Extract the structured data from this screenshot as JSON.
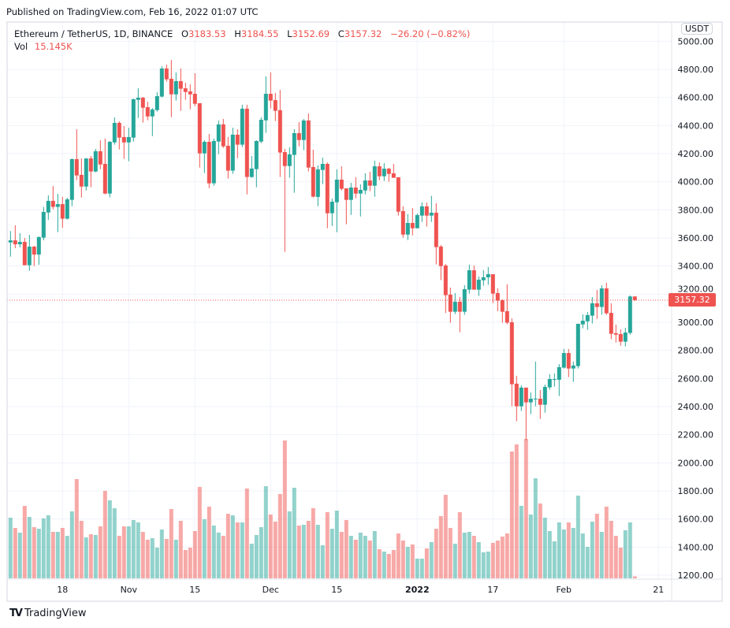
{
  "published": "Published on TradingView.com, Feb 16, 2022 01:07 UTC",
  "legend": {
    "symbol": "Ethereum / TetherUS, 1D, BINANCE",
    "o_label": "O",
    "o": "3183.53",
    "h_label": "H",
    "h": "3184.55",
    "l_label": "L",
    "l": "3152.69",
    "c_label": "C",
    "c": "3157.32",
    "change": "−26.20 (−0.82%)",
    "vol_label": "Vol",
    "vol": "15.145K"
  },
  "currency_button": "USDT",
  "last_price_label": "3157.32",
  "logo_text": "TradingView",
  "colors": {
    "up": "#26a69a",
    "down": "#ef5350",
    "grid": "#f0f3fa",
    "border": "#e0e3eb"
  },
  "chart_data": {
    "type": "candlestick",
    "title": "",
    "xlabel": "",
    "ylabel": "",
    "ylim": [
      1200,
      5000
    ],
    "grid": true,
    "y_tick_labels": [
      "5000.00",
      "4800.00",
      "4600.00",
      "4400.00",
      "4200.00",
      "4000.00",
      "3800.00",
      "3600.00",
      "3400.00",
      "3200.00",
      "3000.00",
      "2800.00",
      "2600.00",
      "2400.00",
      "2200.00",
      "2000.00",
      "1800.00",
      "1600.00",
      "1400.00",
      "1200.00"
    ],
    "x_ticks": [
      {
        "date": "2021-10-18",
        "label": "18"
      },
      {
        "date": "2021-11-01",
        "label": "Nov"
      },
      {
        "date": "2021-11-15",
        "label": "15"
      },
      {
        "date": "2021-12-01",
        "label": "Dec"
      },
      {
        "date": "2021-12-15",
        "label": "15"
      },
      {
        "date": "2022-01-01",
        "label": "2022"
      },
      {
        "date": "2022-01-17",
        "label": "17"
      },
      {
        "date": "2022-02-01",
        "label": "Feb"
      },
      {
        "date": "2022-02-21",
        "label": "21"
      }
    ],
    "last_price": 3157.32,
    "columns": [
      "date",
      "open",
      "high",
      "low",
      "close",
      "volume_k"
    ],
    "candles": [
      [
        "2021-10-07",
        3568,
        3649,
        3467,
        3583,
        462
      ],
      [
        "2021-10-08",
        3583,
        3690,
        3527,
        3555,
        384
      ],
      [
        "2021-10-09",
        3555,
        3634,
        3533,
        3572,
        348
      ],
      [
        "2021-10-10",
        3572,
        3600,
        3406,
        3406,
        552
      ],
      [
        "2021-10-11",
        3406,
        3622,
        3366,
        3538,
        468
      ],
      [
        "2021-10-12",
        3538,
        3544,
        3400,
        3482,
        390
      ],
      [
        "2021-10-13",
        3482,
        3611,
        3409,
        3606,
        378
      ],
      [
        "2021-10-14",
        3602,
        3821,
        3583,
        3785,
        456
      ],
      [
        "2021-10-15",
        3781,
        3903,
        3729,
        3864,
        480
      ],
      [
        "2021-10-16",
        3864,
        3970,
        3804,
        3821,
        354
      ],
      [
        "2021-10-17",
        3821,
        3914,
        3641,
        3841,
        354
      ],
      [
        "2021-10-18",
        3841,
        3892,
        3673,
        3737,
        384
      ],
      [
        "2021-10-19",
        3737,
        3886,
        3731,
        3875,
        324
      ],
      [
        "2021-10-20",
        3871,
        4166,
        3826,
        4161,
        510
      ],
      [
        "2021-10-21",
        4161,
        4374,
        4011,
        4045,
        756
      ],
      [
        "2021-10-22",
        4049,
        4166,
        3888,
        3966,
        438
      ],
      [
        "2021-10-23",
        3966,
        4166,
        3938,
        4166,
        312
      ],
      [
        "2021-10-24",
        4166,
        4183,
        3961,
        4073,
        336
      ],
      [
        "2021-10-25",
        4073,
        4234,
        4067,
        4217,
        330
      ],
      [
        "2021-10-26",
        4217,
        4295,
        4090,
        4123,
        396
      ],
      [
        "2021-10-27",
        4127,
        4307,
        3910,
        3916,
        666
      ],
      [
        "2021-10-28",
        3916,
        4290,
        3888,
        4284,
        594
      ],
      [
        "2021-10-29",
        4280,
        4458,
        4264,
        4419,
        534
      ],
      [
        "2021-10-30",
        4419,
        4430,
        4230,
        4314,
        324
      ],
      [
        "2021-10-31",
        4318,
        4396,
        4163,
        4280,
        396
      ],
      [
        "2021-11-01",
        4280,
        4385,
        4146,
        4318,
        396
      ],
      [
        "2021-11-02",
        4314,
        4592,
        4286,
        4587,
        444
      ],
      [
        "2021-11-03",
        4583,
        4665,
        4454,
        4598,
        426
      ],
      [
        "2021-11-04",
        4598,
        4604,
        4421,
        4527,
        354
      ],
      [
        "2021-11-05",
        4531,
        4570,
        4437,
        4465,
        294
      ],
      [
        "2021-11-06",
        4465,
        4525,
        4325,
        4514,
        306
      ],
      [
        "2021-11-07",
        4510,
        4637,
        4499,
        4609,
        234
      ],
      [
        "2021-11-08",
        4606,
        4822,
        4600,
        4806,
        372
      ],
      [
        "2021-11-09",
        4806,
        4834,
        4712,
        4729,
        300
      ],
      [
        "2021-11-10",
        4733,
        4867,
        4460,
        4622,
        528
      ],
      [
        "2021-11-11",
        4622,
        4778,
        4578,
        4716,
        294
      ],
      [
        "2021-11-12",
        4716,
        4806,
        4505,
        4662,
        438
      ],
      [
        "2021-11-13",
        4665,
        4705,
        4583,
        4639,
        216
      ],
      [
        "2021-11-14",
        4643,
        4693,
        4516,
        4622,
        234
      ],
      [
        "2021-11-15",
        4626,
        4772,
        4538,
        4555,
        360
      ],
      [
        "2021-11-16",
        4559,
        4559,
        4101,
        4202,
        696
      ],
      [
        "2021-11-17",
        4202,
        4295,
        4062,
        4284,
        450
      ],
      [
        "2021-11-18",
        4284,
        4340,
        3955,
        3989,
        546
      ],
      [
        "2021-11-19",
        3989,
        4307,
        3972,
        4290,
        402
      ],
      [
        "2021-11-20",
        4286,
        4436,
        4196,
        4408,
        348
      ],
      [
        "2021-11-21",
        4408,
        4447,
        4241,
        4252,
        324
      ],
      [
        "2021-11-22",
        4256,
        4318,
        4023,
        4079,
        492
      ],
      [
        "2021-11-23",
        4079,
        4385,
        4056,
        4335,
        480
      ],
      [
        "2021-11-24",
        4335,
        4374,
        4168,
        4264,
        426
      ],
      [
        "2021-11-25",
        4264,
        4548,
        4247,
        4520,
        426
      ],
      [
        "2021-11-26",
        4520,
        4548,
        3910,
        4034,
        684
      ],
      [
        "2021-11-27",
        4034,
        4183,
        4028,
        4094,
        264
      ],
      [
        "2021-11-28",
        4090,
        4295,
        3961,
        4290,
        330
      ],
      [
        "2021-11-29",
        4286,
        4458,
        4275,
        4441,
        390
      ],
      [
        "2021-11-30",
        4437,
        4750,
        4348,
        4626,
        702
      ],
      [
        "2021-12-01",
        4626,
        4778,
        4522,
        4578,
        486
      ],
      [
        "2021-12-02",
        4581,
        4632,
        4432,
        4505,
        432
      ],
      [
        "2021-12-03",
        4509,
        4654,
        4034,
        4208,
        642
      ],
      [
        "2021-12-04",
        4211,
        4234,
        3501,
        4112,
        1050
      ],
      [
        "2021-12-05",
        4112,
        4245,
        4028,
        4195,
        510
      ],
      [
        "2021-12-06",
        4191,
        4374,
        3922,
        4346,
        690
      ],
      [
        "2021-12-07",
        4346,
        4424,
        4252,
        4297,
        402
      ],
      [
        "2021-12-08",
        4297,
        4447,
        4225,
        4436,
        408
      ],
      [
        "2021-12-09",
        4436,
        4486,
        4073,
        4101,
        438
      ],
      [
        "2021-12-10",
        4105,
        4228,
        3888,
        3894,
        534
      ],
      [
        "2021-12-11",
        3892,
        4116,
        3826,
        4088,
        408
      ],
      [
        "2021-12-12",
        4084,
        4172,
        3983,
        4127,
        252
      ],
      [
        "2021-12-13",
        4127,
        4138,
        3669,
        3776,
        504
      ],
      [
        "2021-12-14",
        3776,
        3880,
        3686,
        3858,
        378
      ],
      [
        "2021-12-15",
        3854,
        4088,
        3641,
        4015,
        516
      ],
      [
        "2021-12-16",
        4015,
        4110,
        3938,
        3950,
        354
      ],
      [
        "2021-12-17",
        3953,
        3953,
        3697,
        3871,
        444
      ],
      [
        "2021-12-18",
        3871,
        3992,
        3764,
        3959,
        324
      ],
      [
        "2021-12-19",
        3959,
        4032,
        3882,
        3916,
        294
      ],
      [
        "2021-12-20",
        3916,
        3981,
        3753,
        3942,
        348
      ],
      [
        "2021-12-21",
        3938,
        4060,
        3910,
        4009,
        324
      ],
      [
        "2021-12-22",
        4009,
        4071,
        3933,
        3972,
        288
      ],
      [
        "2021-12-23",
        3972,
        4150,
        3893,
        4110,
        360
      ],
      [
        "2021-12-24",
        4110,
        4138,
        4011,
        4039,
        222
      ],
      [
        "2021-12-25",
        4039,
        4133,
        4006,
        4093,
        204
      ],
      [
        "2021-12-26",
        4093,
        4099,
        4000,
        4056,
        186
      ],
      [
        "2021-12-27",
        4060,
        4127,
        4028,
        4028,
        216
      ],
      [
        "2021-12-28",
        4032,
        4032,
        3759,
        3787,
        342
      ],
      [
        "2021-12-29",
        3791,
        3826,
        3602,
        3624,
        288
      ],
      [
        "2021-12-30",
        3624,
        3770,
        3585,
        3707,
        240
      ],
      [
        "2021-12-31",
        3707,
        3813,
        3619,
        3669,
        258
      ],
      [
        "2022-01-01",
        3669,
        3774,
        3669,
        3763,
        150
      ],
      [
        "2022-01-02",
        3759,
        3853,
        3714,
        3825,
        150
      ],
      [
        "2022-01-03",
        3825,
        3853,
        3681,
        3759,
        228
      ],
      [
        "2022-01-04",
        3759,
        3900,
        3714,
        3780,
        276
      ],
      [
        "2022-01-05",
        3780,
        3847,
        3412,
        3535,
        378
      ],
      [
        "2022-01-06",
        3539,
        3550,
        3300,
        3400,
        474
      ],
      [
        "2022-01-07",
        3404,
        3415,
        3066,
        3193,
        636
      ],
      [
        "2022-01-08",
        3197,
        3247,
        2997,
        3075,
        384
      ],
      [
        "2022-01-09",
        3075,
        3208,
        3058,
        3146,
        264
      ],
      [
        "2022-01-10",
        3146,
        3180,
        2929,
        3075,
        504
      ],
      [
        "2022-01-11",
        3075,
        3264,
        3053,
        3236,
        348
      ],
      [
        "2022-01-12",
        3232,
        3410,
        3204,
        3370,
        354
      ],
      [
        "2022-01-13",
        3370,
        3404,
        3232,
        3232,
        324
      ],
      [
        "2022-01-14",
        3232,
        3326,
        3187,
        3303,
        276
      ],
      [
        "2022-01-15",
        3299,
        3371,
        3260,
        3320,
        198
      ],
      [
        "2022-01-16",
        3320,
        3393,
        3266,
        3342,
        204
      ],
      [
        "2022-01-17",
        3342,
        3342,
        3137,
        3204,
        270
      ],
      [
        "2022-01-18",
        3208,
        3242,
        3079,
        3154,
        288
      ],
      [
        "2022-01-19",
        3157,
        3163,
        2997,
        3075,
        318
      ],
      [
        "2022-01-20",
        3079,
        3270,
        2986,
        2997,
        342
      ],
      [
        "2022-01-21",
        3000,
        3028,
        2402,
        2559,
        966
      ],
      [
        "2022-01-22",
        2563,
        2619,
        2296,
        2402,
        1020
      ],
      [
        "2022-01-23",
        2402,
        2552,
        2369,
        2535,
        552
      ],
      [
        "2022-01-24",
        2535,
        2535,
        2160,
        2430,
        1062
      ],
      [
        "2022-01-25",
        2430,
        2501,
        2346,
        2456,
        486
      ],
      [
        "2022-01-26",
        2456,
        2720,
        2402,
        2457,
        762
      ],
      [
        "2022-01-27",
        2456,
        2518,
        2312,
        2413,
        570
      ],
      [
        "2022-01-28",
        2413,
        2557,
        2357,
        2540,
        462
      ],
      [
        "2022-01-29",
        2537,
        2630,
        2520,
        2596,
        360
      ],
      [
        "2022-01-30",
        2591,
        2636,
        2542,
        2596,
        282
      ],
      [
        "2022-01-31",
        2591,
        2703,
        2475,
        2681,
        426
      ],
      [
        "2022-02-01",
        2677,
        2810,
        2671,
        2781,
        372
      ],
      [
        "2022-02-02",
        2781,
        2810,
        2610,
        2671,
        426
      ],
      [
        "2022-02-03",
        2671,
        2720,
        2576,
        2692,
        384
      ],
      [
        "2022-02-04",
        2688,
        2989,
        2671,
        2989,
        630
      ],
      [
        "2022-02-05",
        2985,
        3056,
        2957,
        3011,
        342
      ],
      [
        "2022-02-06",
        3007,
        3073,
        2946,
        3051,
        240
      ],
      [
        "2022-02-07",
        3047,
        3180,
        2991,
        3135,
        432
      ],
      [
        "2022-02-08",
        3135,
        3230,
        3024,
        3109,
        492
      ],
      [
        "2022-02-09",
        3109,
        3264,
        3053,
        3241,
        354
      ],
      [
        "2022-02-10",
        3241,
        3281,
        3053,
        3064,
        546
      ],
      [
        "2022-02-11",
        3067,
        3135,
        2879,
        2918,
        438
      ],
      [
        "2022-02-12",
        2922,
        2983,
        2856,
        2912,
        324
      ],
      [
        "2022-02-13",
        2916,
        2950,
        2834,
        2862,
        234
      ],
      [
        "2022-02-14",
        2862,
        2961,
        2828,
        2927,
        366
      ],
      [
        "2022-02-15",
        2924,
        3191,
        2912,
        3183.53,
        426
      ],
      [
        "2022-02-16",
        3183.53,
        3184.55,
        3152.69,
        3157.32,
        15.145
      ]
    ]
  }
}
